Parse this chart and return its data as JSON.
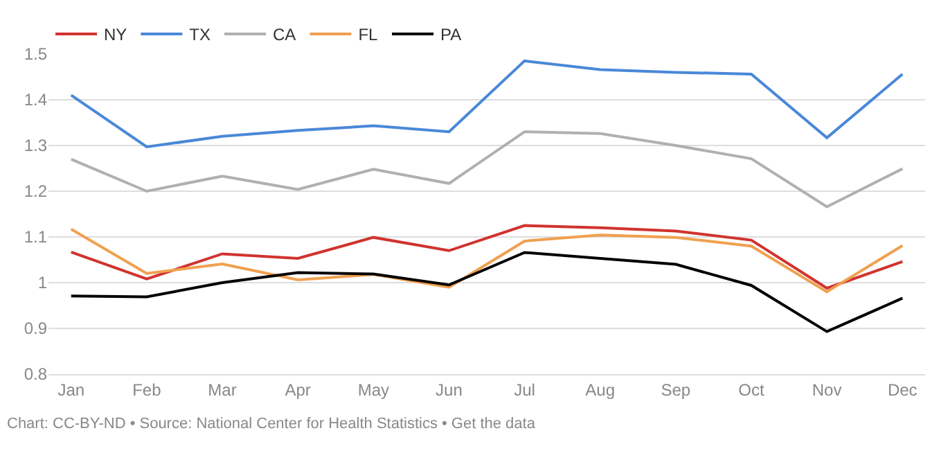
{
  "chart_data": {
    "type": "line",
    "categories": [
      "Jan",
      "Feb",
      "Mar",
      "Apr",
      "May",
      "Jun",
      "Jul",
      "Aug",
      "Sep",
      "Oct",
      "Nov",
      "Dec"
    ],
    "series": [
      {
        "name": "NY",
        "color": "#d0332f",
        "values": [
          1.067,
          1.008,
          1.063,
          1.053,
          1.099,
          1.07,
          1.125,
          1.12,
          1.113,
          1.093,
          0.988,
          1.046
        ]
      },
      {
        "name": "TX",
        "color": "#4a88d8",
        "values": [
          1.41,
          1.297,
          1.32,
          1.333,
          1.343,
          1.33,
          1.485,
          1.466,
          1.46,
          1.456,
          1.317,
          1.456
        ]
      },
      {
        "name": "CA",
        "color": "#b0b0b0",
        "values": [
          1.27,
          1.2,
          1.233,
          1.204,
          1.248,
          1.217,
          1.33,
          1.326,
          1.3,
          1.271,
          1.166,
          1.249
        ]
      },
      {
        "name": "FL",
        "color": "#f0a050",
        "values": [
          1.117,
          1.02,
          1.041,
          1.006,
          1.018,
          0.99,
          1.091,
          1.104,
          1.099,
          1.08,
          0.98,
          1.081
        ]
      },
      {
        "name": "PA",
        "color": "#000000",
        "values": [
          0.971,
          0.969,
          1.0,
          1.022,
          1.019,
          0.995,
          1.066,
          1.053,
          1.04,
          0.994,
          0.893,
          0.966
        ]
      }
    ],
    "ylim": [
      0.8,
      1.5
    ],
    "yticks": [
      0.8,
      0.9,
      1,
      1.1,
      1.2,
      1.3,
      1.4,
      1.5
    ],
    "grid": "y",
    "legend": "top left",
    "marker": "none",
    "line_style": "solid",
    "annotations": [
      "Chart: CC-BY-ND • Source: National Center for Health Statistics • Get the data"
    ]
  }
}
